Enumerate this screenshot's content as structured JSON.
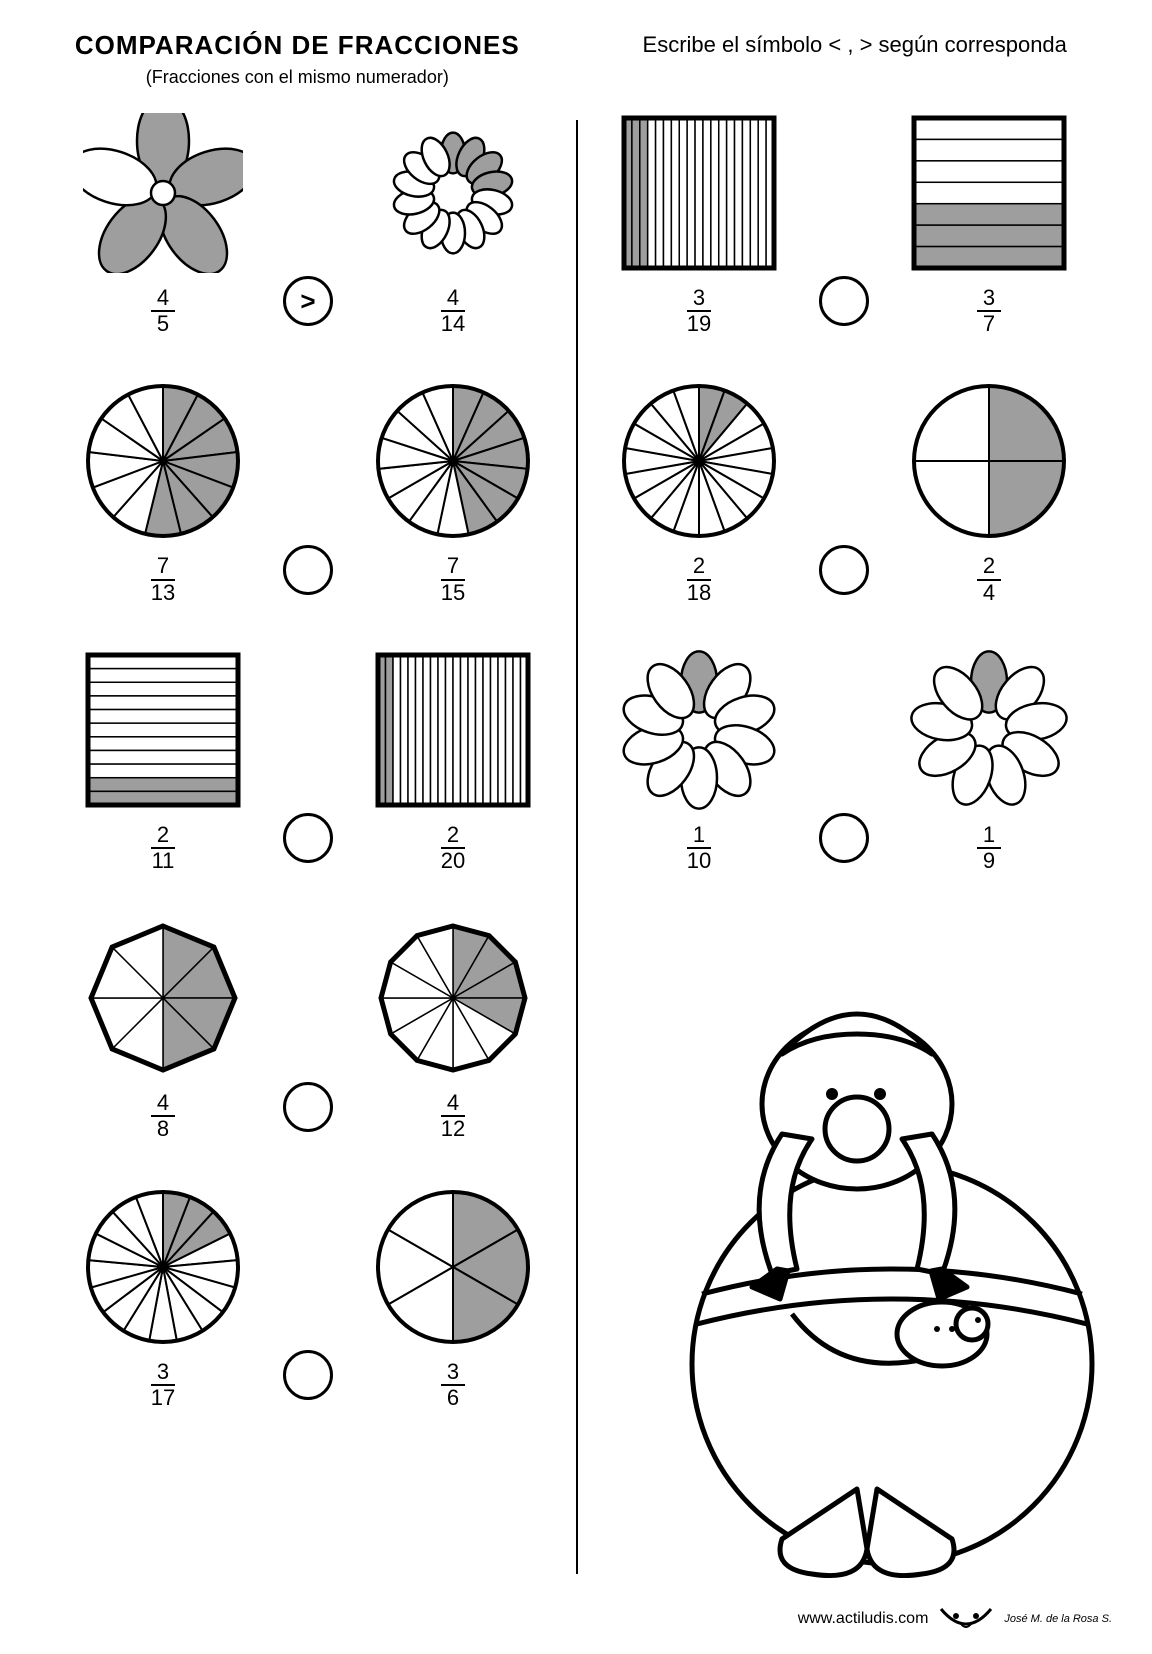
{
  "title": "COMPARACIÓN DE FRACCIONES",
  "subtitle": "(Fracciones con el mismo numerador)",
  "instruction": "Escribe el símbolo < , > según corresponda",
  "colors": {
    "fill": "#9e9e9e",
    "stroke": "#000000",
    "bg": "#ffffff"
  },
  "footer_url": "www.actiludis.com",
  "author": "José M. de la Rosa S.",
  "left": [
    {
      "a": {
        "type": "flower",
        "n": 4,
        "d": 5
      },
      "b": {
        "type": "flower",
        "n": 4,
        "d": 14
      },
      "answer": ">"
    },
    {
      "a": {
        "type": "pie",
        "n": 7,
        "d": 13
      },
      "b": {
        "type": "pie",
        "n": 7,
        "d": 15
      },
      "answer": ""
    },
    {
      "a": {
        "type": "rect_h",
        "n": 2,
        "d": 11
      },
      "b": {
        "type": "rect_v",
        "n": 2,
        "d": 20
      },
      "answer": ""
    },
    {
      "a": {
        "type": "octagon",
        "n": 4,
        "d": 8
      },
      "b": {
        "type": "dodecagon",
        "n": 4,
        "d": 12
      },
      "answer": ""
    },
    {
      "a": {
        "type": "pie",
        "n": 3,
        "d": 17
      },
      "b": {
        "type": "pie",
        "n": 3,
        "d": 6
      },
      "answer": ""
    }
  ],
  "right": [
    {
      "a": {
        "type": "rect_v",
        "n": 3,
        "d": 19
      },
      "b": {
        "type": "rect_h",
        "n": 3,
        "d": 7
      },
      "answer": ""
    },
    {
      "a": {
        "type": "pie",
        "n": 2,
        "d": 18
      },
      "b": {
        "type": "pie",
        "n": 2,
        "d": 4
      },
      "answer": ""
    },
    {
      "a": {
        "type": "flower",
        "n": 1,
        "d": 10
      },
      "b": {
        "type": "flower",
        "n": 1,
        "d": 9
      },
      "answer": ""
    }
  ]
}
